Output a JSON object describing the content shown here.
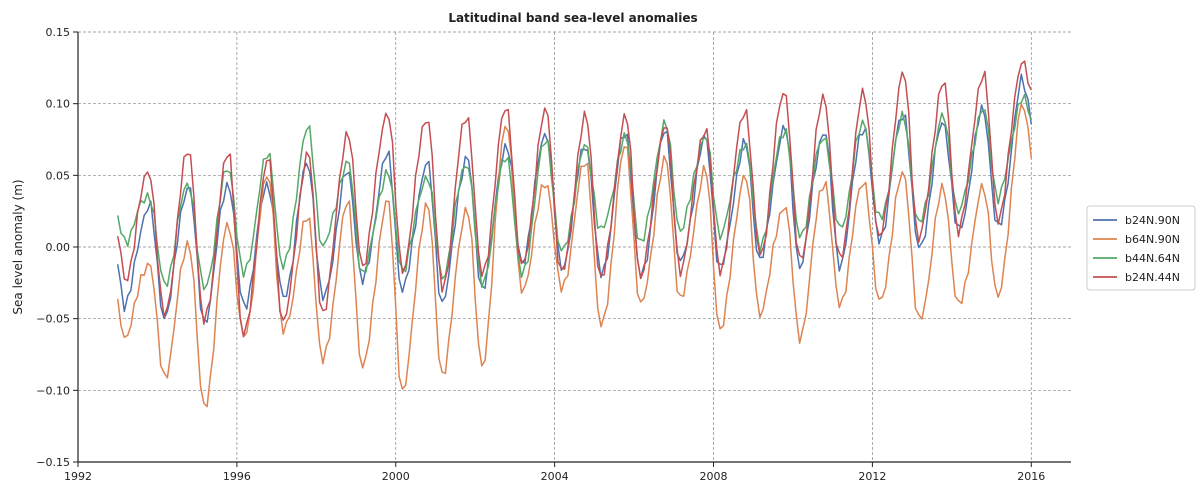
{
  "chart_data": {
    "type": "line",
    "title": "Latitudinal band sea-level anomalies",
    "xlabel": "",
    "ylabel": "Sea level anomaly (m)",
    "xlim": [
      1992,
      2017
    ],
    "ylim": [
      -0.15,
      0.15
    ],
    "x_ticks": [
      1992,
      1996,
      2000,
      2004,
      2008,
      2012,
      2016
    ],
    "x_tick_labels": [
      "1992",
      "1996",
      "2000",
      "2004",
      "2008",
      "2012",
      "2016"
    ],
    "y_ticks": [
      -0.15,
      -0.1,
      -0.05,
      0.0,
      0.05,
      0.1,
      0.15
    ],
    "y_tick_labels": [
      "−0.15",
      "−0.10",
      "−0.05",
      "0.00",
      "0.05",
      "0.10",
      "0.15"
    ],
    "grid": true,
    "legend_position": "right",
    "start_year": 1993.0,
    "end_year": 2016.0,
    "sampling": "monthly",
    "series": [
      {
        "name": "b24N.90N",
        "color": "#4c72b0",
        "peaks": [
          0.03,
          0.044,
          0.045,
          0.044,
          0.058,
          0.052,
          0.064,
          0.058,
          0.063,
          0.072,
          0.081,
          0.072,
          0.08,
          0.08,
          0.075,
          0.072,
          0.084,
          0.082,
          0.085,
          0.094,
          0.087,
          0.095,
          0.116
        ],
        "troughs": [
          -0.04,
          -0.048,
          -0.052,
          -0.042,
          -0.037,
          -0.037,
          -0.024,
          -0.03,
          -0.038,
          -0.028,
          -0.01,
          -0.015,
          -0.02,
          -0.022,
          -0.012,
          -0.015,
          -0.008,
          -0.012,
          -0.012,
          0.005,
          -0.002,
          0.01,
          0.012
        ]
      },
      {
        "name": "b64N.90N",
        "color": "#dd8452",
        "peaks": [
          -0.01,
          0.004,
          0.017,
          0.05,
          0.02,
          0.03,
          0.032,
          0.03,
          0.028,
          0.088,
          0.046,
          0.06,
          0.07,
          0.06,
          0.053,
          0.05,
          0.03,
          0.047,
          0.047,
          0.052,
          0.04,
          0.04,
          0.1
        ],
        "troughs": [
          -0.062,
          -0.09,
          -0.112,
          -0.064,
          -0.06,
          -0.08,
          -0.084,
          -0.1,
          -0.088,
          -0.082,
          -0.03,
          -0.03,
          -0.057,
          -0.042,
          -0.037,
          -0.057,
          -0.045,
          -0.062,
          -0.04,
          -0.039,
          -0.053,
          -0.042,
          -0.035
        ]
      },
      {
        "name": "b44N.64N",
        "color": "#55a868",
        "peaks": [
          0.037,
          0.045,
          0.055,
          0.064,
          0.082,
          0.058,
          0.052,
          0.05,
          0.06,
          0.065,
          0.075,
          0.07,
          0.075,
          0.085,
          0.077,
          0.073,
          0.083,
          0.078,
          0.087,
          0.09,
          0.09,
          0.095,
          0.105
        ],
        "troughs": [
          0.005,
          -0.026,
          -0.03,
          -0.02,
          -0.015,
          0.0,
          -0.018,
          -0.015,
          -0.02,
          -0.025,
          -0.02,
          -0.005,
          0.01,
          0.002,
          0.012,
          0.01,
          0.002,
          0.008,
          0.012,
          0.018,
          0.015,
          0.024,
          0.035
        ]
      },
      {
        "name": "b24N.44N",
        "color": "#c44e52",
        "peaks": [
          0.054,
          0.068,
          0.065,
          0.06,
          0.064,
          0.079,
          0.095,
          0.092,
          0.093,
          0.098,
          0.095,
          0.09,
          0.09,
          0.085,
          0.083,
          0.097,
          0.11,
          0.105,
          0.107,
          0.12,
          0.114,
          0.12,
          0.132
        ],
        "troughs": [
          -0.023,
          -0.048,
          -0.053,
          -0.063,
          -0.053,
          -0.046,
          -0.012,
          -0.015,
          -0.028,
          -0.02,
          -0.015,
          -0.02,
          -0.023,
          -0.02,
          -0.015,
          -0.015,
          -0.005,
          -0.01,
          -0.01,
          0.005,
          0.005,
          0.012,
          0.02
        ]
      }
    ]
  }
}
